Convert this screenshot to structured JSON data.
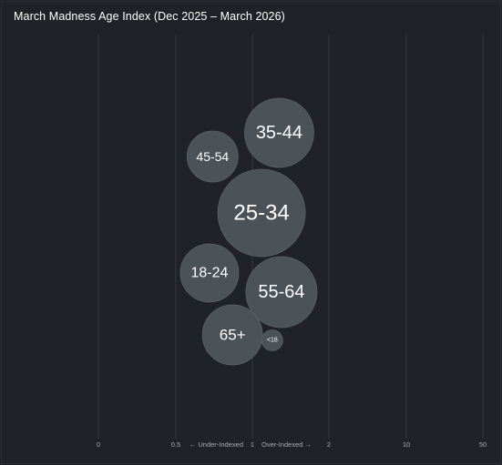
{
  "chart_data": {
    "type": "bubble",
    "title": "March Madness Age Index (Dec 2025 – March 2026)",
    "x_scale": "categorical-index",
    "x_ticks": [
      "0",
      "0.5",
      "1",
      "2",
      "10",
      "50"
    ],
    "under_label": "← Under-Indexed",
    "over_label": "Over-Indexed →",
    "grid": true,
    "colors": {
      "background": "#1f2226",
      "bubble": "#4b5258",
      "bubble_stroke": "#5a6167",
      "grid": "#3a3f45",
      "tick_text": "#a9adb2"
    },
    "bubbles": [
      {
        "label": "35-44",
        "index": 1.35
      },
      {
        "label": "45-54",
        "index": 0.74
      },
      {
        "label": "25-34",
        "index": 1.12
      },
      {
        "label": "18-24",
        "index": 0.72
      },
      {
        "label": "55-64",
        "index": 1.38
      },
      {
        "label": "65+",
        "index": 0.87
      },
      {
        "label": "<18",
        "index": 1.26
      }
    ]
  }
}
